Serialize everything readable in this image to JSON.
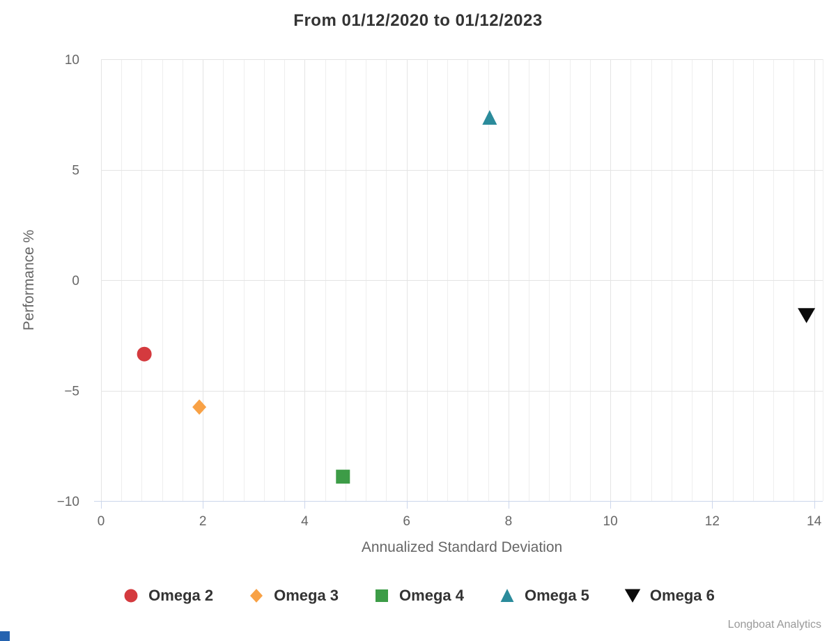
{
  "credit": "Longboat Analytics",
  "accent_color": "#2563b0",
  "axis_color": "#ccd6eb",
  "grid_major_color": "#e4e4e4",
  "grid_minor_color": "#eeeeee",
  "chart_data": {
    "type": "scatter",
    "title": "From 01/12/2020 to 01/12/2023",
    "xlabel": "Annualized Standard Deviation",
    "ylabel": "Performance %",
    "xlim": [
      0,
      14.17
    ],
    "ylim": [
      -10,
      10
    ],
    "x_ticks": [
      0,
      2,
      4,
      6,
      8,
      10,
      12,
      14
    ],
    "x_tick_labels": [
      "0",
      "2",
      "4",
      "6",
      "8",
      "10",
      "12",
      "14"
    ],
    "y_ticks": [
      10,
      5,
      0,
      -5,
      -10
    ],
    "y_tick_labels": [
      "10",
      "5",
      "0",
      "−5",
      "−10"
    ],
    "x_minor_grid_interval": 0.4,
    "grid": true,
    "legend_position": "bottom",
    "series": [
      {
        "name": "Omega 2",
        "marker": "circle",
        "color": "#d43a3e",
        "points": [
          [
            0.85,
            -3.35
          ]
        ]
      },
      {
        "name": "Omega 3",
        "marker": "diamond",
        "color": "#f8a145",
        "points": [
          [
            1.93,
            -5.75
          ]
        ]
      },
      {
        "name": "Omega 4",
        "marker": "square",
        "color": "#3d9c47",
        "points": [
          [
            4.75,
            -8.9
          ]
        ]
      },
      {
        "name": "Omega 5",
        "marker": "triangle-up",
        "color": "#2b8b9b",
        "points": [
          [
            7.63,
            7.35
          ]
        ]
      },
      {
        "name": "Omega 6",
        "marker": "triangle-down",
        "color": "#0b0b0b",
        "points": [
          [
            13.85,
            -1.6
          ]
        ]
      }
    ]
  }
}
